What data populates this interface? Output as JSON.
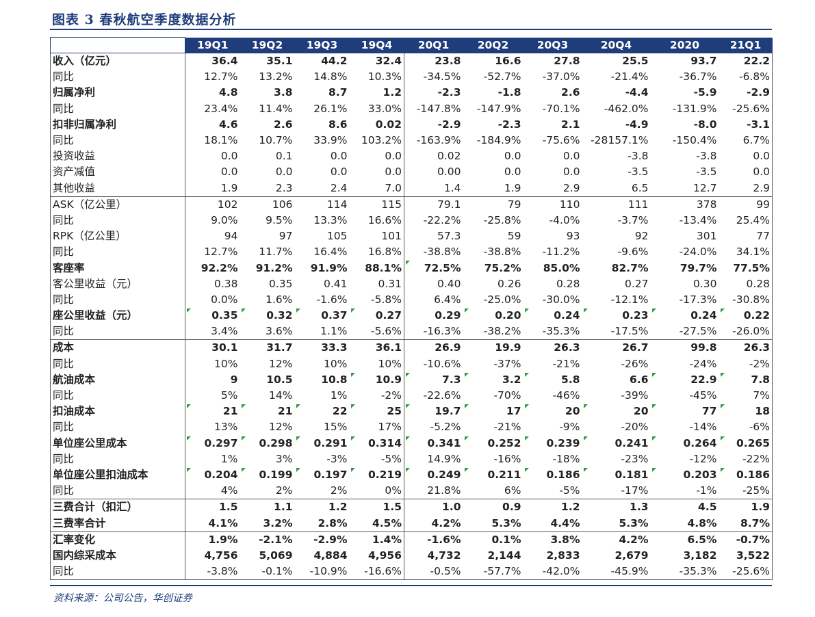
{
  "title": "图表 3   春秋航空季度数据分析",
  "source": "资料来源：公司公告，华创证券",
  "columns": [
    "19Q1",
    "19Q2",
    "19Q3",
    "19Q4",
    "20Q1",
    "20Q2",
    "20Q3",
    "20Q4",
    "2020",
    "21Q1"
  ],
  "rows": [
    {
      "label": "收入（亿元）",
      "bold": true,
      "values": [
        "36.4",
        "35.1",
        "44.2",
        "32.4",
        "23.8",
        "16.6",
        "27.8",
        "25.5",
        "93.7",
        "22.2"
      ]
    },
    {
      "label": "同比",
      "bold": false,
      "values": [
        "12.7%",
        "13.2%",
        "14.8%",
        "10.3%",
        "-34.5%",
        "-52.7%",
        "-37.0%",
        "-21.4%",
        "-36.7%",
        "-6.8%"
      ]
    },
    {
      "label": "归属净利",
      "bold": true,
      "values": [
        "4.8",
        "3.8",
        "8.7",
        "1.2",
        "-2.3",
        "-1.8",
        "2.6",
        "-4.4",
        "-5.9",
        "-2.9"
      ]
    },
    {
      "label": "同比",
      "bold": false,
      "values": [
        "23.4%",
        "11.4%",
        "26.1%",
        "33.0%",
        "-147.8%",
        "-147.9%",
        "-70.1%",
        "-462.0%",
        "-131.9%",
        "-25.6%"
      ]
    },
    {
      "label": "扣非归属净利",
      "bold": true,
      "values": [
        "4.6",
        "2.6",
        "8.6",
        "0.02",
        "-2.9",
        "-2.3",
        "2.1",
        "-4.9",
        "-8.0",
        "-3.1"
      ]
    },
    {
      "label": "同比",
      "bold": false,
      "values": [
        "18.1%",
        "10.7%",
        "33.9%",
        "103.2%",
        "-163.9%",
        "-184.9%",
        "-75.6%",
        "-28157.1%",
        "-150.4%",
        "6.7%"
      ]
    },
    {
      "label": "投资收益",
      "bold": false,
      "values": [
        "0.0",
        "0.1",
        "0.0",
        "0.0",
        "0.02",
        "0.0",
        "0.0",
        "-3.8",
        "-3.8",
        "0.0"
      ]
    },
    {
      "label": "资产减值",
      "bold": false,
      "values": [
        "0.0",
        "0.0",
        "0.0",
        "0.0",
        "0.00",
        "0.0",
        "0.0",
        "-3.5",
        "-3.5",
        "0.0"
      ]
    },
    {
      "label": "其他收益",
      "bold": false,
      "values": [
        "1.9",
        "2.3",
        "2.4",
        "7.0",
        "1.4",
        "1.9",
        "2.9",
        "6.5",
        "12.7",
        "2.9"
      ]
    },
    {
      "label": "ASK（亿公里）",
      "bold": false,
      "values": [
        "102",
        "106",
        "114",
        "115",
        "79.1",
        "79",
        "110",
        "111",
        "378",
        "99"
      ]
    },
    {
      "label": "同比",
      "bold": false,
      "values": [
        "9.0%",
        "9.5%",
        "13.3%",
        "16.6%",
        "-22.2%",
        "-25.8%",
        "-4.0%",
        "-3.7%",
        "-13.4%",
        "25.4%"
      ]
    },
    {
      "label": "RPK（亿公里）",
      "bold": false,
      "values": [
        "94",
        "97",
        "105",
        "101",
        "57.3",
        "59",
        "93",
        "92",
        "301",
        "77"
      ]
    },
    {
      "label": "同比",
      "bold": false,
      "values": [
        "12.7%",
        "11.7%",
        "16.4%",
        "16.8%",
        "-38.8%",
        "-38.8%",
        "-11.2%",
        "-9.6%",
        "-24.0%",
        "34.1%"
      ]
    },
    {
      "label": "客座率",
      "bold": true,
      "values": [
        "92.2%",
        "91.2%",
        "91.9%",
        "88.1%",
        "72.5%",
        "75.2%",
        "85.0%",
        "82.7%",
        "79.7%",
        "77.5%"
      ]
    },
    {
      "label": "客公里收益（元）",
      "bold": false,
      "values": [
        "0.38",
        "0.35",
        "0.41",
        "0.31",
        "0.40",
        "0.26",
        "0.28",
        "0.27",
        "0.30",
        "0.28"
      ]
    },
    {
      "label": "同比",
      "bold": false,
      "values": [
        "0.0%",
        "1.6%",
        "-1.6%",
        "-5.8%",
        "6.4%",
        "-25.0%",
        "-30.0%",
        "-12.1%",
        "-17.3%",
        "-30.8%"
      ]
    },
    {
      "label": "座公里收益（元）",
      "bold": true,
      "values": [
        "0.35",
        "0.32",
        "0.37",
        "0.27",
        "0.29",
        "0.20",
        "0.24",
        "0.23",
        "0.24",
        "0.22"
      ]
    },
    {
      "label": "同比",
      "bold": false,
      "values": [
        "3.4%",
        "3.6%",
        "1.1%",
        "-5.6%",
        "-16.3%",
        "-38.2%",
        "-35.3%",
        "-17.5%",
        "-27.5%",
        "-26.0%"
      ]
    },
    {
      "label": "成本",
      "bold": true,
      "values": [
        "30.1",
        "31.7",
        "33.3",
        "36.1",
        "26.9",
        "19.9",
        "26.3",
        "26.7",
        "99.8",
        "26.3"
      ]
    },
    {
      "label": "同比",
      "bold": false,
      "values": [
        "10%",
        "12%",
        "10%",
        "10%",
        "-10.6%",
        "-37%",
        "-21%",
        "-26%",
        "-24%",
        "-2%"
      ]
    },
    {
      "label": "航油成本",
      "bold": true,
      "values": [
        "9",
        "10.5",
        "10.8",
        "10.9",
        "7.3",
        "3.2",
        "5.8",
        "6.6",
        "22.9",
        "7.8"
      ]
    },
    {
      "label": "同比",
      "bold": false,
      "values": [
        "5%",
        "14%",
        "1%",
        "-2%",
        "-22.6%",
        "-70%",
        "-46%",
        "-39%",
        "-45%",
        "7%"
      ]
    },
    {
      "label": "扣油成本",
      "bold": true,
      "values": [
        "21",
        "21",
        "22",
        "25",
        "19.7",
        "17",
        "20",
        "20",
        "77",
        "18"
      ]
    },
    {
      "label": "同比",
      "bold": false,
      "values": [
        "13%",
        "12%",
        "15%",
        "17%",
        "-5.2%",
        "-21%",
        "-9%",
        "-20%",
        "-14%",
        "-6%"
      ]
    },
    {
      "label": "单位座公里成本",
      "bold": true,
      "values": [
        "0.297",
        "0.298",
        "0.291",
        "0.314",
        "0.341",
        "0.252",
        "0.239",
        "0.241",
        "0.264",
        "0.265"
      ]
    },
    {
      "label": "同比",
      "bold": false,
      "values": [
        "1%",
        "3%",
        "-3%",
        "-5%",
        "14.9%",
        "-16%",
        "-18%",
        "-23%",
        "-12%",
        "-22%"
      ]
    },
    {
      "label": "单位座公里扣油成本",
      "bold": true,
      "values": [
        "0.204",
        "0.199",
        "0.197",
        "0.219",
        "0.249",
        "0.211",
        "0.186",
        "0.181",
        "0.203",
        "0.186"
      ]
    },
    {
      "label": "同比",
      "bold": false,
      "values": [
        "4%",
        "2%",
        "2%",
        "0%",
        "21.8%",
        "6%",
        "-5%",
        "-17%",
        "-1%",
        "-25%"
      ]
    },
    {
      "label": "三费合计（扣汇）",
      "bold": true,
      "values": [
        "1.5",
        "1.1",
        "1.2",
        "1.5",
        "1.0",
        "0.9",
        "1.2",
        "1.3",
        "4.5",
        "1.9"
      ]
    },
    {
      "label": "三费率合计",
      "bold": true,
      "values": [
        "4.1%",
        "3.2%",
        "2.8%",
        "4.5%",
        "4.2%",
        "5.3%",
        "4.4%",
        "5.3%",
        "4.8%",
        "8.7%"
      ]
    },
    {
      "label": "汇率变化",
      "bold": true,
      "values": [
        "1.9%",
        "-2.1%",
        "-2.9%",
        "1.4%",
        "-1.6%",
        "0.1%",
        "3.8%",
        "4.2%",
        "6.5%",
        "-0.7%"
      ]
    },
    {
      "label": "国内综采成本",
      "bold": true,
      "values": [
        "4,756",
        "5,069",
        "4,884",
        "4,956",
        "4,732",
        "2,144",
        "2,833",
        "2,679",
        "3,182",
        "3,522"
      ]
    },
    {
      "label": "同比",
      "bold": false,
      "values": [
        "-3.8%",
        "-0.1%",
        "-10.9%",
        "-16.6%",
        "-0.5%",
        "-57.7%",
        "-42.0%",
        "-45.9%",
        "-35.3%",
        "-25.6%"
      ]
    }
  ]
}
